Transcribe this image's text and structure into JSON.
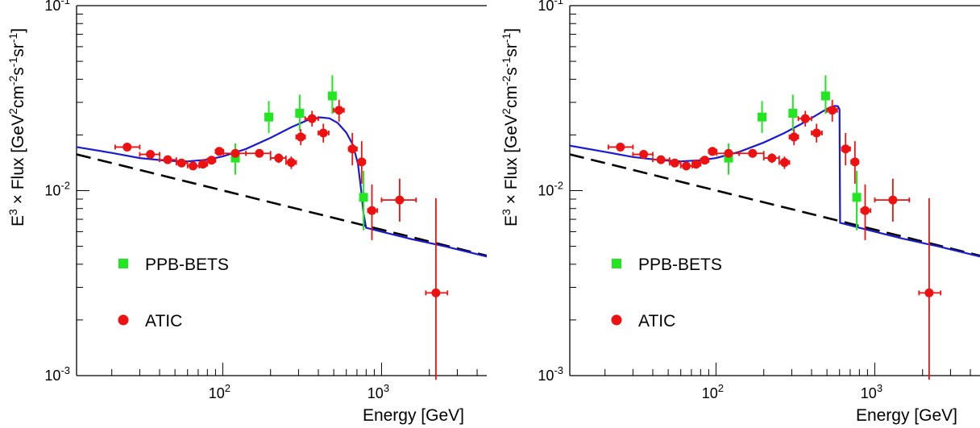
{
  "colors": {
    "ppb_bets": "#22e622",
    "atic": "#ee1111",
    "model": "#1a1ad0",
    "background": "#000000"
  },
  "chart_data": [
    {
      "type": "scatter",
      "xscale": "log",
      "yscale": "log",
      "xlim": [
        12,
        4600
      ],
      "ylim": [
        0.001,
        0.1
      ],
      "xlabel": "Energy [GeV]",
      "ylabel_parts": {
        "e": "E",
        "e_sup": "3",
        "times": " × Flux [GeV",
        "gev_sup": "2",
        "cm": "cm",
        "cm_sup": "-2",
        "s": "s",
        "s_sup": "-1",
        "sr": "sr",
        "sr_sup": "-1",
        "close": "]"
      },
      "y_ticks": [
        {
          "value": 0.1,
          "base": "10",
          "exp": "-1"
        },
        {
          "value": 0.01,
          "base": "10",
          "exp": "-2"
        },
        {
          "value": 0.001,
          "base": "10",
          "exp": "-3"
        }
      ],
      "x_ticks": [
        {
          "value": 100,
          "base": "10",
          "exp": "2"
        },
        {
          "value": 1000,
          "base": "10",
          "exp": "3"
        }
      ],
      "legend": [
        {
          "label": "PPB-BETS",
          "marker": "square",
          "color": "#22e622"
        },
        {
          "label": "ATIC",
          "marker": "circle",
          "color": "#ee1111"
        }
      ],
      "series": [
        {
          "name": "PPB-BETS",
          "marker": "square",
          "points": [
            {
              "x": 120,
              "y": 0.015,
              "ylo": 0.0122,
              "yhi": 0.018
            },
            {
              "x": 195,
              "y": 0.025,
              "ylo": 0.0205,
              "yhi": 0.0305
            },
            {
              "x": 305,
              "y": 0.0262,
              "ylo": 0.021,
              "yhi": 0.033
            },
            {
              "x": 490,
              "y": 0.0325,
              "ylo": 0.026,
              "yhi": 0.042
            },
            {
              "x": 770,
              "y": 0.0092,
              "ylo": 0.0061,
              "yhi": 0.0128
            }
          ]
        },
        {
          "name": "ATIC",
          "marker": "circle",
          "points": [
            {
              "x": 25,
              "y": 0.0172,
              "xlo": 21,
              "xhi": 30,
              "ylo": 0.0168,
              "yhi": 0.0176
            },
            {
              "x": 35,
              "y": 0.0157,
              "xlo": 30,
              "xhi": 40,
              "ylo": 0.0153,
              "yhi": 0.0161
            },
            {
              "x": 45,
              "y": 0.0147,
              "xlo": 40,
              "xhi": 51,
              "ylo": 0.0143,
              "yhi": 0.0151
            },
            {
              "x": 55,
              "y": 0.0141,
              "xlo": 51,
              "xhi": 60,
              "ylo": 0.0137,
              "yhi": 0.0145
            },
            {
              "x": 65,
              "y": 0.0136,
              "xlo": 60,
              "xhi": 71,
              "ylo": 0.0132,
              "yhi": 0.014
            },
            {
              "x": 75,
              "y": 0.0139,
              "xlo": 71,
              "xhi": 80,
              "ylo": 0.0135,
              "yhi": 0.0143
            },
            {
              "x": 85,
              "y": 0.0146,
              "xlo": 80,
              "xhi": 90,
              "ylo": 0.0142,
              "yhi": 0.015
            },
            {
              "x": 95,
              "y": 0.0163,
              "xlo": 90,
              "xhi": 101,
              "ylo": 0.0158,
              "yhi": 0.0168
            },
            {
              "x": 120,
              "y": 0.0159,
              "xlo": 101,
              "xhi": 140,
              "ylo": 0.0153,
              "yhi": 0.0165
            },
            {
              "x": 170,
              "y": 0.0159,
              "xlo": 140,
              "xhi": 200,
              "ylo": 0.0152,
              "yhi": 0.0166
            },
            {
              "x": 225,
              "y": 0.015,
              "xlo": 200,
              "xhi": 250,
              "ylo": 0.0141,
              "yhi": 0.0159
            },
            {
              "x": 270,
              "y": 0.0142,
              "xlo": 250,
              "xhi": 290,
              "ylo": 0.0131,
              "yhi": 0.0153
            },
            {
              "x": 310,
              "y": 0.0195,
              "xlo": 290,
              "xhi": 330,
              "ylo": 0.0176,
              "yhi": 0.0215
            },
            {
              "x": 365,
              "y": 0.0245,
              "xlo": 330,
              "xhi": 400,
              "ylo": 0.0222,
              "yhi": 0.027
            },
            {
              "x": 430,
              "y": 0.0205,
              "xlo": 400,
              "xhi": 465,
              "ylo": 0.0182,
              "yhi": 0.023
            },
            {
              "x": 540,
              "y": 0.0272,
              "xlo": 500,
              "xhi": 580,
              "ylo": 0.0236,
              "yhi": 0.031
            },
            {
              "x": 655,
              "y": 0.0168,
              "xlo": 620,
              "xhi": 700,
              "ylo": 0.0137,
              "yhi": 0.0205
            },
            {
              "x": 750,
              "y": 0.0143,
              "xlo": 710,
              "xhi": 790,
              "ylo": 0.0109,
              "yhi": 0.0185
            },
            {
              "x": 870,
              "y": 0.0078,
              "xlo": 820,
              "xhi": 940,
              "ylo": 0.0054,
              "yhi": 0.0108
            },
            {
              "x": 1300,
              "y": 0.0089,
              "xlo": 1000,
              "xhi": 1650,
              "ylo": 0.0068,
              "yhi": 0.0116
            },
            {
              "x": 2200,
              "y": 0.0028,
              "xlo": 1900,
              "xhi": 2600,
              "ylo": 0.00095,
              "yhi": 0.0091
            }
          ]
        },
        {
          "name": "background",
          "style": "dashed",
          "color": "#000000",
          "points": [
            [
              12,
              0.0157
            ],
            [
              4600,
              0.00445
            ]
          ]
        },
        {
          "name": "model",
          "style": "solid",
          "color": "#1a1ad0",
          "points": [
            [
              12,
              0.0172
            ],
            [
              20,
              0.016
            ],
            [
              30,
              0.015
            ],
            [
              45,
              0.0145
            ],
            [
              60,
              0.0144
            ],
            [
              80,
              0.0147
            ],
            [
              100,
              0.0153
            ],
            [
              140,
              0.0168
            ],
            [
              200,
              0.0193
            ],
            [
              270,
              0.022
            ],
            [
              340,
              0.024
            ],
            [
              410,
              0.0249
            ],
            [
              470,
              0.0246
            ],
            [
              530,
              0.0232
            ],
            [
              600,
              0.0206
            ],
            [
              660,
              0.0177
            ],
            [
              710,
              0.014
            ],
            [
              745,
              0.01
            ],
            [
              770,
              0.0075
            ],
            [
              800,
              0.0063
            ],
            [
              1000,
              0.006
            ],
            [
              1500,
              0.0055
            ],
            [
              2500,
              0.005
            ],
            [
              4600,
              0.0044
            ]
          ]
        }
      ]
    },
    {
      "type": "scatter",
      "xscale": "log",
      "yscale": "log",
      "xlim": [
        12,
        4600
      ],
      "ylim": [
        0.001,
        0.1
      ],
      "xlabel": "Energy [GeV]",
      "ylabel_parts": {
        "e": "E",
        "e_sup": "3",
        "times": " × Flux [GeV",
        "gev_sup": "2",
        "cm": "cm",
        "cm_sup": "-2",
        "s": "s",
        "s_sup": "-1",
        "sr": "sr",
        "sr_sup": "-1",
        "close": "]"
      },
      "y_ticks": [
        {
          "value": 0.1,
          "base": "10",
          "exp": "-1"
        },
        {
          "value": 0.01,
          "base": "10",
          "exp": "-2"
        },
        {
          "value": 0.001,
          "base": "10",
          "exp": "-3"
        }
      ],
      "x_ticks": [
        {
          "value": 100,
          "base": "10",
          "exp": "2"
        },
        {
          "value": 1000,
          "base": "10",
          "exp": "3"
        }
      ],
      "legend": [
        {
          "label": "PPB-BETS",
          "marker": "square",
          "color": "#22e622"
        },
        {
          "label": "ATIC",
          "marker": "circle",
          "color": "#ee1111"
        }
      ],
      "series": [
        {
          "name": "PPB-BETS",
          "marker": "square",
          "points": [
            {
              "x": 120,
              "y": 0.015,
              "ylo": 0.0122,
              "yhi": 0.018
            },
            {
              "x": 195,
              "y": 0.025,
              "ylo": 0.0205,
              "yhi": 0.0305
            },
            {
              "x": 305,
              "y": 0.0262,
              "ylo": 0.021,
              "yhi": 0.033
            },
            {
              "x": 490,
              "y": 0.0325,
              "ylo": 0.026,
              "yhi": 0.042
            },
            {
              "x": 770,
              "y": 0.0092,
              "ylo": 0.0061,
              "yhi": 0.0128
            }
          ]
        },
        {
          "name": "ATIC",
          "marker": "circle",
          "points": [
            {
              "x": 25,
              "y": 0.0172,
              "xlo": 21,
              "xhi": 30,
              "ylo": 0.0168,
              "yhi": 0.0176
            },
            {
              "x": 35,
              "y": 0.0157,
              "xlo": 30,
              "xhi": 40,
              "ylo": 0.0153,
              "yhi": 0.0161
            },
            {
              "x": 45,
              "y": 0.0147,
              "xlo": 40,
              "xhi": 51,
              "ylo": 0.0143,
              "yhi": 0.0151
            },
            {
              "x": 55,
              "y": 0.0141,
              "xlo": 51,
              "xhi": 60,
              "ylo": 0.0137,
              "yhi": 0.0145
            },
            {
              "x": 65,
              "y": 0.0136,
              "xlo": 60,
              "xhi": 71,
              "ylo": 0.0132,
              "yhi": 0.014
            },
            {
              "x": 75,
              "y": 0.0139,
              "xlo": 71,
              "xhi": 80,
              "ylo": 0.0135,
              "yhi": 0.0143
            },
            {
              "x": 85,
              "y": 0.0146,
              "xlo": 80,
              "xhi": 90,
              "ylo": 0.0142,
              "yhi": 0.015
            },
            {
              "x": 95,
              "y": 0.0163,
              "xlo": 90,
              "xhi": 101,
              "ylo": 0.0158,
              "yhi": 0.0168
            },
            {
              "x": 120,
              "y": 0.0159,
              "xlo": 101,
              "xhi": 140,
              "ylo": 0.0153,
              "yhi": 0.0165
            },
            {
              "x": 170,
              "y": 0.0159,
              "xlo": 140,
              "xhi": 200,
              "ylo": 0.0152,
              "yhi": 0.0166
            },
            {
              "x": 225,
              "y": 0.015,
              "xlo": 200,
              "xhi": 250,
              "ylo": 0.0141,
              "yhi": 0.0159
            },
            {
              "x": 270,
              "y": 0.0142,
              "xlo": 250,
              "xhi": 290,
              "ylo": 0.0131,
              "yhi": 0.0153
            },
            {
              "x": 310,
              "y": 0.0195,
              "xlo": 290,
              "xhi": 330,
              "ylo": 0.0176,
              "yhi": 0.0215
            },
            {
              "x": 365,
              "y": 0.0245,
              "xlo": 330,
              "xhi": 400,
              "ylo": 0.0222,
              "yhi": 0.027
            },
            {
              "x": 430,
              "y": 0.0205,
              "xlo": 400,
              "xhi": 465,
              "ylo": 0.0182,
              "yhi": 0.023
            },
            {
              "x": 540,
              "y": 0.0272,
              "xlo": 500,
              "xhi": 580,
              "ylo": 0.0236,
              "yhi": 0.031
            },
            {
              "x": 655,
              "y": 0.0168,
              "xlo": 620,
              "xhi": 700,
              "ylo": 0.0137,
              "yhi": 0.0205
            },
            {
              "x": 750,
              "y": 0.0143,
              "xlo": 710,
              "xhi": 790,
              "ylo": 0.0109,
              "yhi": 0.0185
            },
            {
              "x": 870,
              "y": 0.0078,
              "xlo": 820,
              "xhi": 940,
              "ylo": 0.0054,
              "yhi": 0.0108
            },
            {
              "x": 1300,
              "y": 0.0089,
              "xlo": 1000,
              "xhi": 1650,
              "ylo": 0.0068,
              "yhi": 0.0116
            },
            {
              "x": 2200,
              "y": 0.0028,
              "xlo": 1900,
              "xhi": 2600,
              "ylo": 0.00095,
              "yhi": 0.0091
            }
          ]
        },
        {
          "name": "background",
          "style": "dashed",
          "color": "#000000",
          "points": [
            [
              12,
              0.0157
            ],
            [
              4600,
              0.00445
            ]
          ]
        },
        {
          "name": "model",
          "style": "solid",
          "color": "#1a1ad0",
          "points": [
            [
              12,
              0.0175
            ],
            [
              20,
              0.0162
            ],
            [
              30,
              0.0152
            ],
            [
              45,
              0.0146
            ],
            [
              60,
              0.0144
            ],
            [
              80,
              0.0146
            ],
            [
              100,
              0.015
            ],
            [
              140,
              0.0162
            ],
            [
              200,
              0.0182
            ],
            [
              270,
              0.0205
            ],
            [
              340,
              0.0228
            ],
            [
              410,
              0.025
            ],
            [
              470,
              0.0268
            ],
            [
              520,
              0.0281
            ],
            [
              560,
              0.0287
            ],
            [
              585,
              0.0286
            ],
            [
              600,
              0.0275
            ],
            [
              605,
              0.0067
            ],
            [
              800,
              0.0063
            ],
            [
              1000,
              0.006
            ],
            [
              1500,
              0.0055
            ],
            [
              2500,
              0.005
            ],
            [
              4600,
              0.0044
            ]
          ]
        }
      ]
    }
  ]
}
